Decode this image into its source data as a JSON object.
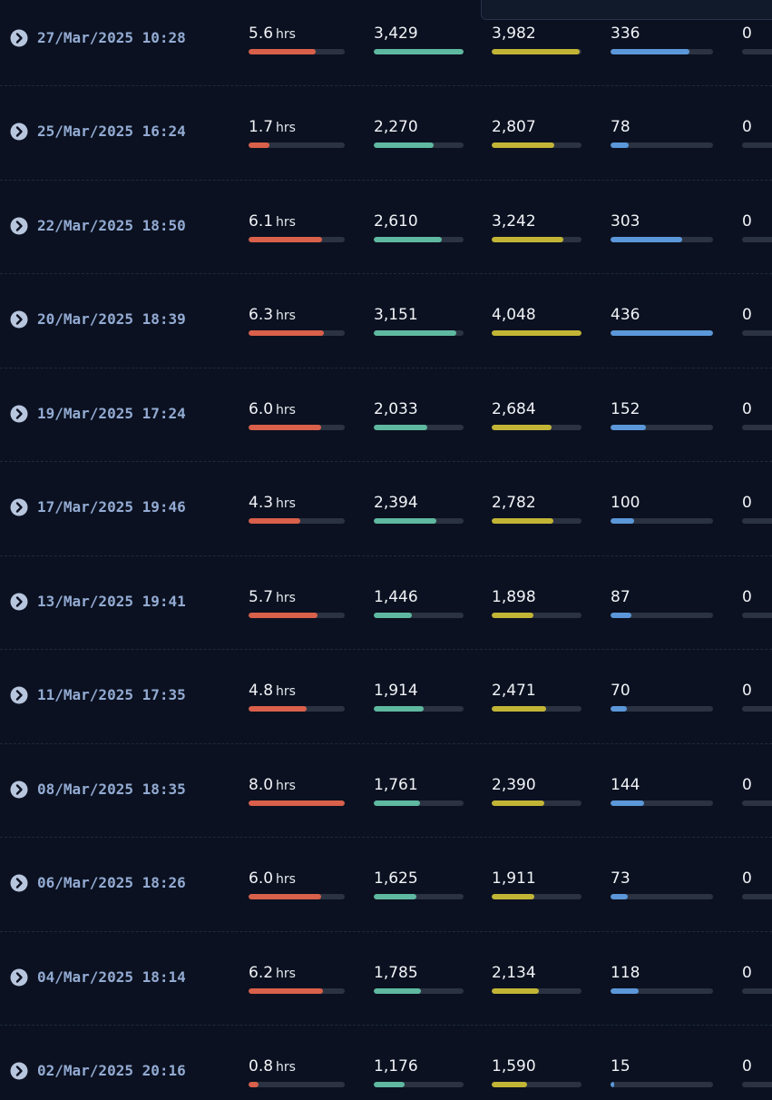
{
  "unit": "hrs",
  "rows": [
    {
      "date": "27/Mar/2025 10:28",
      "cells": [
        5.6,
        {
          "value": 3429,
          "label": "3,429"
        },
        {
          "value": 3982,
          "label": "3,982"
        },
        336,
        0
      ]
    },
    {
      "date": "25/Mar/2025 16:24",
      "cells": [
        1.7,
        {
          "value": 2270,
          "label": "2,270"
        },
        {
          "value": 2807,
          "label": "2,807"
        },
        78,
        0
      ]
    },
    {
      "date": "22/Mar/2025 18:50",
      "cells": [
        6.1,
        {
          "value": 2610,
          "label": "2,610"
        },
        {
          "value": 3242,
          "label": "3,242"
        },
        303,
        0
      ]
    },
    {
      "date": "20/Mar/2025 18:39",
      "cells": [
        6.3,
        {
          "value": 3151,
          "label": "3,151"
        },
        {
          "value": 4048,
          "label": "4,048"
        },
        436,
        0
      ]
    },
    {
      "date": "19/Mar/2025 17:24",
      "cells": [
        {
          "value": 6,
          "label": "6.0"
        },
        {
          "value": 2033,
          "label": "2,033"
        },
        {
          "value": 2684,
          "label": "2,684"
        },
        152,
        0
      ]
    },
    {
      "date": "17/Mar/2025 19:46",
      "cells": [
        4.3,
        {
          "value": 2394,
          "label": "2,394"
        },
        {
          "value": 2782,
          "label": "2,782"
        },
        100,
        0
      ]
    },
    {
      "date": "13/Mar/2025 19:41",
      "cells": [
        5.7,
        {
          "value": 1446,
          "label": "1,446"
        },
        {
          "value": 1898,
          "label": "1,898"
        },
        87,
        0
      ]
    },
    {
      "date": "11/Mar/2025 17:35",
      "cells": [
        4.8,
        {
          "value": 1914,
          "label": "1,914"
        },
        {
          "value": 2471,
          "label": "2,471"
        },
        70,
        0
      ]
    },
    {
      "date": "08/Mar/2025 18:35",
      "cells": [
        {
          "value": 8,
          "label": "8.0"
        },
        {
          "value": 1761,
          "label": "1,761"
        },
        {
          "value": 2390,
          "label": "2,390"
        },
        144,
        0
      ]
    },
    {
      "date": "06/Mar/2025 18:26",
      "cells": [
        {
          "value": 6,
          "label": "6.0"
        },
        {
          "value": 1625,
          "label": "1,625"
        },
        {
          "value": 1911,
          "label": "1,911"
        },
        73,
        0
      ]
    },
    {
      "date": "04/Mar/2025 18:14",
      "cells": [
        6.2,
        {
          "value": 1785,
          "label": "1,785"
        },
        {
          "value": 2134,
          "label": "2,134"
        },
        118,
        0
      ]
    },
    {
      "date": "02/Mar/2025 20:16",
      "cells": [
        0.8,
        {
          "value": 1176,
          "label": "1,176"
        },
        {
          "value": 1590,
          "label": "1,590"
        },
        15,
        0
      ]
    }
  ]
}
